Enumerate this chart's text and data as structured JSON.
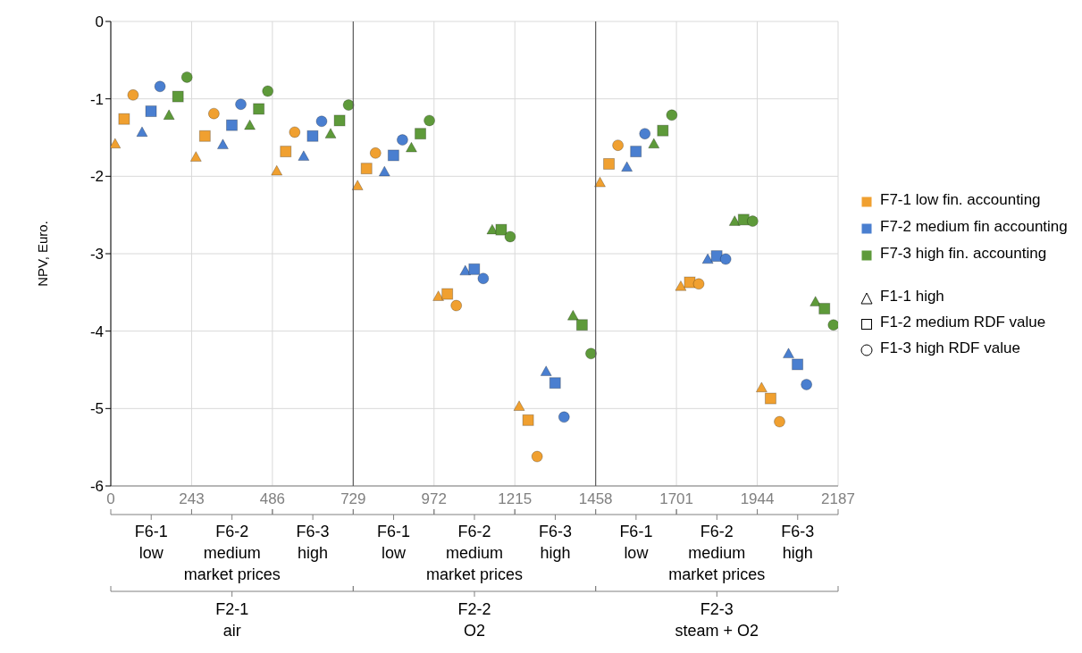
{
  "chart_data": {
    "type": "scatter",
    "ylabel": "NPV, Euro.",
    "xlim": [
      0,
      2187
    ],
    "xticks": [
      0,
      243,
      486,
      729,
      972,
      1215,
      1458,
      1701,
      1944,
      2187
    ],
    "ylim": [
      -6,
      0
    ],
    "yticks": [
      -6,
      -5,
      -4,
      -3,
      -2,
      -1,
      0
    ],
    "grid": true,
    "annotations": [
      "F7-1 low fin. accounting",
      "F7-2 medium fin accounting",
      "F7-3 high fin. accounting",
      "F1-1 high",
      "F1-2 medium RDF value",
      "F1-3 high RDF value",
      "F6-1\nlow",
      "F6-2\nmedium\nmarket prices",
      "F6-3\nhigh",
      "F6-1\nlow",
      "F6-2\nmedium\nmarket prices",
      "F6-3\nhigh",
      "F6-1\nlow",
      "F6-2\nmedium\nmarket prices",
      "F6-3\nhigh",
      "F2-1\nair",
      "F2-2\nO2",
      "F2-3\nsteam + O2"
    ],
    "series": [
      {
        "color": "#f0a030",
        "marker": "triangle",
        "x": [
          13,
          256,
          499,
          742,
          985,
          1228,
          1471,
          1714,
          1957
        ],
        "values": [
          -1.58,
          -1.75,
          -1.93,
          -2.12,
          -3.55,
          -4.97,
          -2.08,
          -3.42,
          -4.73
        ]
      },
      {
        "color": "#f0a030",
        "marker": "square",
        "x": [
          40,
          283,
          526,
          769,
          1012,
          1255,
          1498,
          1741,
          1984
        ],
        "values": [
          -1.26,
          -1.48,
          -1.68,
          -1.9,
          -3.52,
          -5.15,
          -1.84,
          -3.37,
          -4.87
        ]
      },
      {
        "color": "#f0a030",
        "marker": "circle",
        "x": [
          67,
          310,
          553,
          796,
          1039,
          1282,
          1525,
          1768,
          2011
        ],
        "values": [
          -0.95,
          -1.19,
          -1.43,
          -1.7,
          -3.67,
          -5.62,
          -1.6,
          -3.39,
          -5.17
        ]
      },
      {
        "color": "#4a7fd0",
        "marker": "triangle",
        "x": [
          94,
          337,
          580,
          823,
          1066,
          1309,
          1552,
          1795,
          2038
        ],
        "values": [
          -1.43,
          -1.59,
          -1.74,
          -1.94,
          -3.22,
          -4.52,
          -1.88,
          -3.07,
          -4.29
        ]
      },
      {
        "color": "#4a7fd0",
        "marker": "square",
        "x": [
          121,
          364,
          607,
          850,
          1093,
          1336,
          1579,
          1822,
          2065
        ],
        "values": [
          -1.16,
          -1.34,
          -1.48,
          -1.73,
          -3.2,
          -4.67,
          -1.68,
          -3.03,
          -4.43
        ]
      },
      {
        "color": "#4a7fd0",
        "marker": "circle",
        "x": [
          148,
          391,
          634,
          877,
          1120,
          1363,
          1606,
          1849,
          2092
        ],
        "values": [
          -0.84,
          -1.07,
          -1.29,
          -1.53,
          -3.32,
          -5.11,
          -1.45,
          -3.07,
          -4.69
        ]
      },
      {
        "color": "#5e9a3a",
        "marker": "triangle",
        "x": [
          175,
          418,
          661,
          904,
          1147,
          1390,
          1633,
          1876,
          2119
        ],
        "values": [
          -1.21,
          -1.34,
          -1.45,
          -1.63,
          -2.69,
          -3.8,
          -1.58,
          -2.58,
          -3.62
        ]
      },
      {
        "color": "#5e9a3a",
        "marker": "square",
        "x": [
          202,
          445,
          688,
          931,
          1174,
          1417,
          1660,
          1903,
          2146
        ],
        "values": [
          -0.97,
          -1.13,
          -1.28,
          -1.45,
          -2.69,
          -3.92,
          -1.41,
          -2.56,
          -3.71
        ]
      },
      {
        "color": "#5e9a3a",
        "marker": "circle",
        "x": [
          229,
          472,
          715,
          958,
          1201,
          1444,
          1687,
          1930,
          2173
        ],
        "values": [
          -0.72,
          -0.9,
          -1.08,
          -1.28,
          -2.78,
          -4.29,
          -1.21,
          -2.58,
          -3.92
        ]
      }
    ]
  }
}
